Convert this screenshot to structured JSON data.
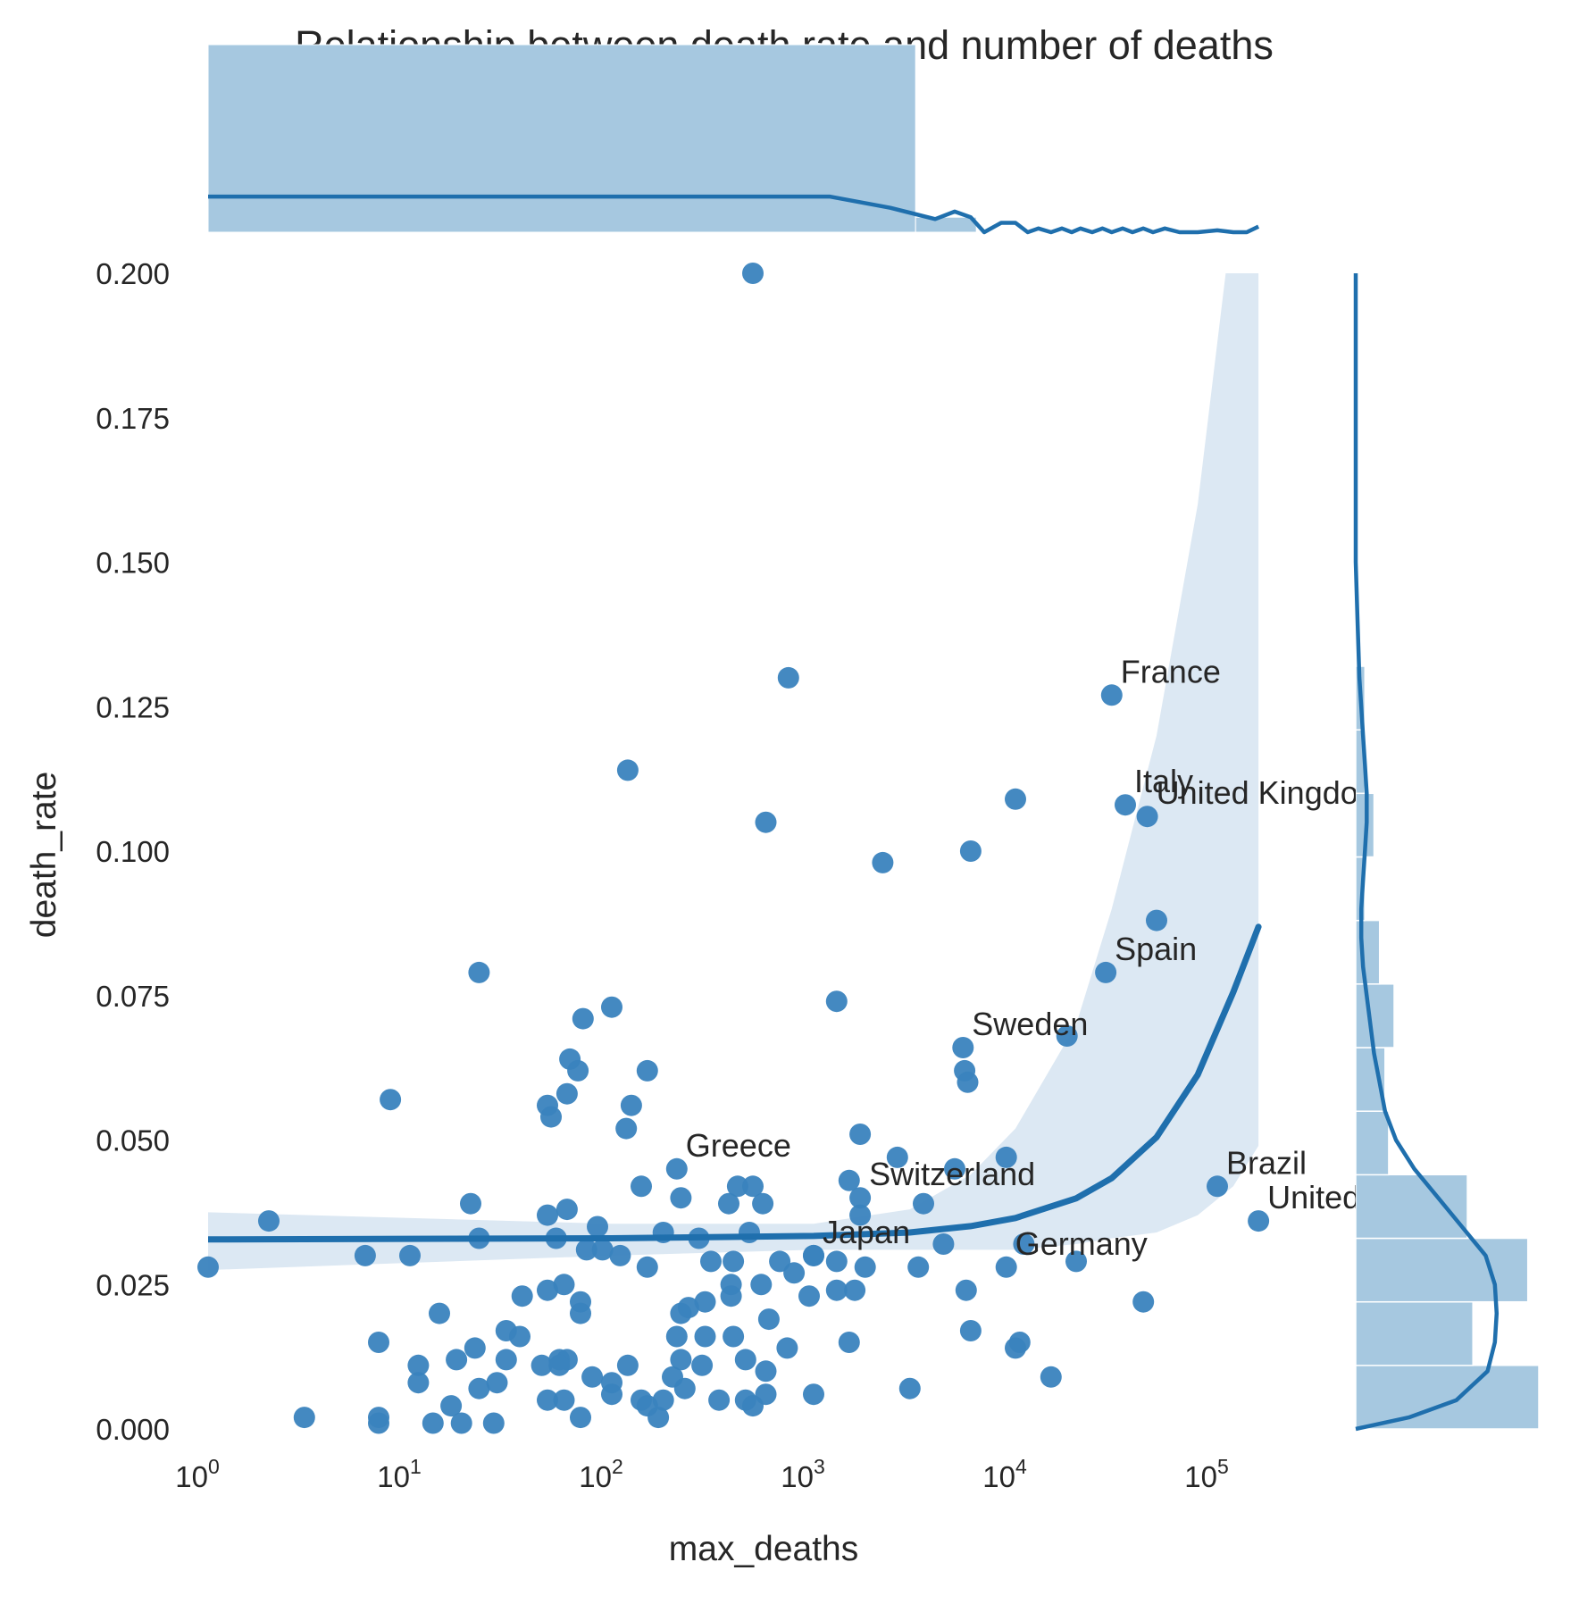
{
  "chart_data": {
    "type": "scatter",
    "title": "Relationship between death rate and number of deaths",
    "xlabel": "max_deaths",
    "ylabel": "death_rate",
    "xscale": "log",
    "xlim": [
      1,
      200000
    ],
    "ylim": [
      0,
      0.2
    ],
    "grid": false,
    "y_ticks": [
      "0.000",
      "0.025",
      "0.050",
      "0.075",
      "0.100",
      "0.125",
      "0.150",
      "0.175",
      "0.200"
    ],
    "x_ticks": [
      {
        "base": "10",
        "exp": "0"
      },
      {
        "base": "10",
        "exp": "1"
      },
      {
        "base": "10",
        "exp": "2"
      },
      {
        "base": "10",
        "exp": "3"
      },
      {
        "base": "10",
        "exp": "4"
      },
      {
        "base": "10",
        "exp": "5"
      }
    ],
    "colors": {
      "points": "#3a83be",
      "regression": "#1f6fad",
      "band": "#dce8f3",
      "marginal_hist": "#a6c8e0",
      "text": "#262626"
    },
    "labeled_points": [
      {
        "label": "France",
        "x": 30000,
        "y": 0.127
      },
      {
        "label": "Italy",
        "x": 35000,
        "y": 0.108
      },
      {
        "label": "United Kingdom",
        "x": 45000,
        "y": 0.106
      },
      {
        "label": "Spain",
        "x": 28000,
        "y": 0.079
      },
      {
        "label": "Sweden",
        "x": 5500,
        "y": 0.066
      },
      {
        "label": "Greece",
        "x": 210,
        "y": 0.045
      },
      {
        "label": "Switzerland",
        "x": 1700,
        "y": 0.04
      },
      {
        "label": "Japan",
        "x": 1000,
        "y": 0.03
      },
      {
        "label": "Germany",
        "x": 9000,
        "y": 0.028
      },
      {
        "label": "Brazil",
        "x": 100000,
        "y": 0.042
      },
      {
        "label": "United States",
        "x": 160000,
        "y": 0.036
      }
    ],
    "points": [
      [
        500,
        0.2
      ],
      [
        750,
        0.13
      ],
      [
        120,
        0.114
      ],
      [
        580,
        0.105
      ],
      [
        10000,
        0.109
      ],
      [
        6000,
        0.1
      ],
      [
        2200,
        0.098
      ],
      [
        50000,
        0.088
      ],
      [
        22,
        0.079
      ],
      [
        1300,
        0.074
      ],
      [
        100,
        0.073
      ],
      [
        72,
        0.071
      ],
      [
        18000,
        0.068
      ],
      [
        62,
        0.064
      ],
      [
        68,
        0.062
      ],
      [
        150,
        0.062
      ],
      [
        5600,
        0.062
      ],
      [
        5800,
        0.06
      ],
      [
        8,
        0.057
      ],
      [
        48,
        0.056
      ],
      [
        125,
        0.056
      ],
      [
        60,
        0.058
      ],
      [
        50,
        0.054
      ],
      [
        118,
        0.052
      ],
      [
        1700,
        0.051
      ],
      [
        2600,
        0.047
      ],
      [
        9000,
        0.047
      ],
      [
        5000,
        0.045
      ],
      [
        1500,
        0.043
      ],
      [
        140,
        0.042
      ],
      [
        420,
        0.042
      ],
      [
        500,
        0.042
      ],
      [
        220,
        0.04
      ],
      [
        3500,
        0.039
      ],
      [
        380,
        0.039
      ],
      [
        560,
        0.039
      ],
      [
        20,
        0.039
      ],
      [
        60,
        0.038
      ],
      [
        48,
        0.037
      ],
      [
        1700,
        0.037
      ],
      [
        2,
        0.036
      ],
      [
        85,
        0.035
      ],
      [
        180,
        0.034
      ],
      [
        480,
        0.034
      ],
      [
        22,
        0.033
      ],
      [
        53,
        0.033
      ],
      [
        270,
        0.033
      ],
      [
        75,
        0.031
      ],
      [
        90,
        0.031
      ],
      [
        4400,
        0.032
      ],
      [
        11000,
        0.032
      ],
      [
        6,
        0.03
      ],
      [
        10,
        0.03
      ],
      [
        110,
        0.03
      ],
      [
        1000,
        0.03
      ],
      [
        1300,
        0.029
      ],
      [
        310,
        0.029
      ],
      [
        400,
        0.029
      ],
      [
        680,
        0.029
      ],
      [
        1,
        0.028
      ],
      [
        150,
        0.028
      ],
      [
        800,
        0.027
      ],
      [
        1800,
        0.028
      ],
      [
        3300,
        0.028
      ],
      [
        20000,
        0.029
      ],
      [
        58,
        0.025
      ],
      [
        390,
        0.025
      ],
      [
        550,
        0.025
      ],
      [
        950,
        0.023
      ],
      [
        1300,
        0.024
      ],
      [
        1600,
        0.024
      ],
      [
        5700,
        0.024
      ],
      [
        36,
        0.023
      ],
      [
        390,
        0.023
      ],
      [
        48,
        0.024
      ],
      [
        70,
        0.022
      ],
      [
        43000,
        0.022
      ],
      [
        14,
        0.02
      ],
      [
        70,
        0.02
      ],
      [
        220,
        0.02
      ],
      [
        240,
        0.021
      ],
      [
        290,
        0.022
      ],
      [
        600,
        0.019
      ],
      [
        30,
        0.017
      ],
      [
        210,
        0.016
      ],
      [
        290,
        0.016
      ],
      [
        400,
        0.016
      ],
      [
        6000,
        0.017
      ],
      [
        7,
        0.015
      ],
      [
        35,
        0.016
      ],
      [
        1500,
        0.015
      ],
      [
        10000,
        0.014
      ],
      [
        10500,
        0.015
      ],
      [
        11,
        0.011
      ],
      [
        17,
        0.012
      ],
      [
        21,
        0.014
      ],
      [
        30,
        0.012
      ],
      [
        45,
        0.011
      ],
      [
        55,
        0.012
      ],
      [
        60,
        0.012
      ],
      [
        55,
        0.011
      ],
      [
        120,
        0.011
      ],
      [
        220,
        0.012
      ],
      [
        280,
        0.011
      ],
      [
        460,
        0.012
      ],
      [
        740,
        0.014
      ],
      [
        580,
        0.01
      ],
      [
        80,
        0.009
      ],
      [
        200,
        0.009
      ],
      [
        11,
        0.008
      ],
      [
        22,
        0.007
      ],
      [
        27,
        0.008
      ],
      [
        100,
        0.008
      ],
      [
        230,
        0.007
      ],
      [
        3000,
        0.007
      ],
      [
        15000,
        0.009
      ],
      [
        1000,
        0.006
      ],
      [
        100,
        0.006
      ],
      [
        48,
        0.005
      ],
      [
        58,
        0.005
      ],
      [
        140,
        0.005
      ],
      [
        180,
        0.005
      ],
      [
        340,
        0.005
      ],
      [
        460,
        0.005
      ],
      [
        500,
        0.004
      ],
      [
        580,
        0.006
      ],
      [
        16,
        0.004
      ],
      [
        150,
        0.004
      ],
      [
        3,
        0.002
      ],
      [
        7,
        0.002
      ],
      [
        70,
        0.002
      ],
      [
        7,
        0.001
      ],
      [
        13,
        0.001
      ],
      [
        18,
        0.001
      ],
      [
        26,
        0.001
      ],
      [
        170,
        0.002
      ]
    ],
    "regression": [
      [
        1,
        0.0328
      ],
      [
        10,
        0.0329
      ],
      [
        100,
        0.033
      ],
      [
        1000,
        0.0334
      ],
      [
        3000,
        0.034
      ],
      [
        6000,
        0.0351
      ],
      [
        10000,
        0.0365
      ],
      [
        20000,
        0.0399
      ],
      [
        30000,
        0.0434
      ],
      [
        50000,
        0.0505
      ],
      [
        80000,
        0.0613
      ],
      [
        120000,
        0.0756
      ],
      [
        160000,
        0.0869
      ]
    ],
    "band_upper": [
      [
        1,
        0.0375
      ],
      [
        100,
        0.0355
      ],
      [
        1000,
        0.0355
      ],
      [
        3000,
        0.038
      ],
      [
        6000,
        0.044
      ],
      [
        10000,
        0.052
      ],
      [
        20000,
        0.07
      ],
      [
        30000,
        0.09
      ],
      [
        50000,
        0.12
      ],
      [
        80000,
        0.16
      ],
      [
        110000,
        0.2
      ],
      [
        160000,
        0.2
      ]
    ],
    "band_lower": [
      [
        1,
        0.0275
      ],
      [
        100,
        0.03
      ],
      [
        1000,
        0.031
      ],
      [
        3000,
        0.031
      ],
      [
        6000,
        0.031
      ],
      [
        10000,
        0.031
      ],
      [
        20000,
        0.032
      ],
      [
        30000,
        0.033
      ],
      [
        50000,
        0.034
      ],
      [
        80000,
        0.037
      ],
      [
        120000,
        0.042
      ],
      [
        160000,
        0.049
      ]
    ],
    "marginal_x": {
      "hist": [
        {
          "from": 1,
          "to": 3200,
          "height": 1.0
        },
        {
          "from": 3200,
          "to": 6400,
          "height": 0.08
        }
      ],
      "kde": [
        [
          1,
          0.19
        ],
        [
          1200,
          0.19
        ],
        [
          2400,
          0.13
        ],
        [
          4000,
          0.07
        ],
        [
          5000,
          0.11
        ],
        [
          6000,
          0.08
        ],
        [
          7000,
          0.0
        ],
        [
          8500,
          0.05
        ],
        [
          10000,
          0.05
        ],
        [
          11500,
          0.0
        ],
        [
          13000,
          0.02
        ],
        [
          15000,
          0.0
        ],
        [
          17000,
          0.02
        ],
        [
          19000,
          0.0
        ],
        [
          21000,
          0.02
        ],
        [
          24000,
          0.0
        ],
        [
          27000,
          0.02
        ],
        [
          30000,
          0.0
        ],
        [
          34000,
          0.02
        ],
        [
          38000,
          0.0
        ],
        [
          43000,
          0.02
        ],
        [
          48000,
          0.0
        ],
        [
          55000,
          0.02
        ],
        [
          65000,
          0.0
        ],
        [
          80000,
          0.0
        ],
        [
          100000,
          0.01
        ],
        [
          120000,
          0.0
        ],
        [
          140000,
          0.0
        ],
        [
          160000,
          0.03
        ]
      ]
    },
    "marginal_y": {
      "hist": [
        {
          "from": 0.0,
          "to": 0.011,
          "count": 1.0
        },
        {
          "from": 0.011,
          "to": 0.022,
          "count": 0.64
        },
        {
          "from": 0.022,
          "to": 0.033,
          "count": 0.94
        },
        {
          "from": 0.033,
          "to": 0.044,
          "count": 0.61
        },
        {
          "from": 0.044,
          "to": 0.055,
          "count": 0.18
        },
        {
          "from": 0.055,
          "to": 0.066,
          "count": 0.16
        },
        {
          "from": 0.066,
          "to": 0.077,
          "count": 0.21
        },
        {
          "from": 0.077,
          "to": 0.088,
          "count": 0.13
        },
        {
          "from": 0.088,
          "to": 0.099,
          "count": 0.05
        },
        {
          "from": 0.099,
          "to": 0.11,
          "count": 0.1
        },
        {
          "from": 0.11,
          "to": 0.121,
          "count": 0.05
        },
        {
          "from": 0.121,
          "to": 0.132,
          "count": 0.05
        }
      ],
      "kde": [
        [
          0.0,
          0.0
        ],
        [
          0.002,
          0.29
        ],
        [
          0.005,
          0.55
        ],
        [
          0.01,
          0.72
        ],
        [
          0.015,
          0.76
        ],
        [
          0.02,
          0.77
        ],
        [
          0.025,
          0.76
        ],
        [
          0.03,
          0.71
        ],
        [
          0.035,
          0.58
        ],
        [
          0.04,
          0.45
        ],
        [
          0.045,
          0.32
        ],
        [
          0.05,
          0.22
        ],
        [
          0.055,
          0.16
        ],
        [
          0.06,
          0.13
        ],
        [
          0.065,
          0.1
        ],
        [
          0.07,
          0.08
        ],
        [
          0.075,
          0.06
        ],
        [
          0.08,
          0.04
        ],
        [
          0.085,
          0.03
        ],
        [
          0.09,
          0.03
        ],
        [
          0.095,
          0.04
        ],
        [
          0.1,
          0.05
        ],
        [
          0.105,
          0.06
        ],
        [
          0.11,
          0.06
        ],
        [
          0.115,
          0.05
        ],
        [
          0.12,
          0.04
        ],
        [
          0.125,
          0.03
        ],
        [
          0.13,
          0.02
        ],
        [
          0.14,
          0.01
        ],
        [
          0.15,
          0.0
        ],
        [
          0.2,
          0.0
        ]
      ]
    }
  }
}
